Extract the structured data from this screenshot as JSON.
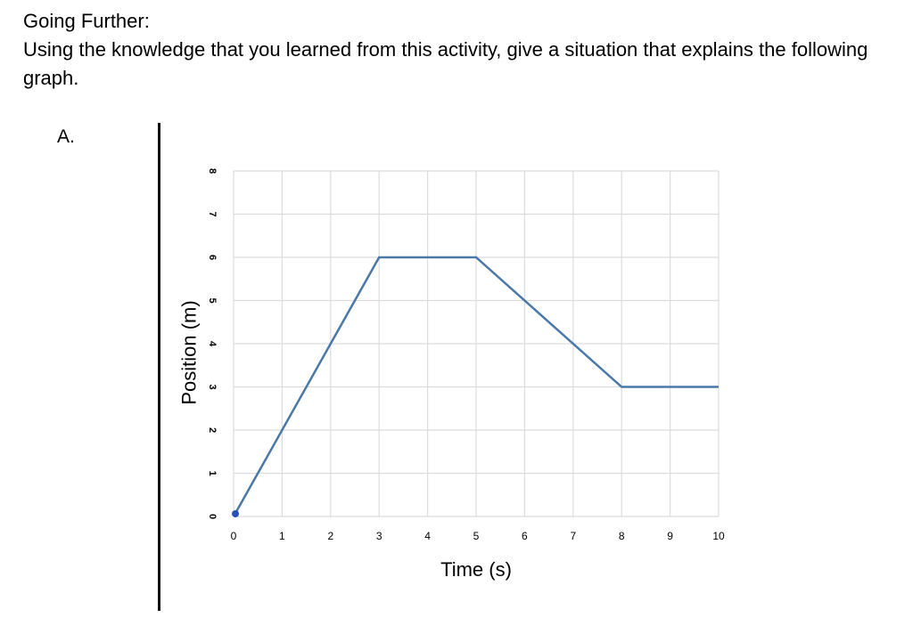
{
  "document": {
    "heading": "Going Further:",
    "prompt": "Using the knowledge that you learned from this activity, give a situation that explains the following graph.",
    "question_label": "A."
  },
  "chart_data": {
    "type": "line",
    "title": "",
    "xlabel": "Time (s)",
    "ylabel": "Position (m)",
    "xlim": [
      0,
      10
    ],
    "ylim": [
      0,
      8
    ],
    "xticks": [
      "0",
      "1",
      "2",
      "3",
      "4",
      "5",
      "6",
      "7",
      "8",
      "9",
      "10"
    ],
    "yticks": [
      "0",
      "1",
      "2",
      "3",
      "4",
      "5",
      "6",
      "7",
      "8"
    ],
    "grid": true,
    "line_color": "#4a78a8",
    "marker_color": "#2a4fb5",
    "series": [
      {
        "x": [
          0,
          3,
          5,
          8,
          10
        ],
        "y": [
          0,
          6,
          6,
          3,
          3
        ]
      }
    ]
  }
}
